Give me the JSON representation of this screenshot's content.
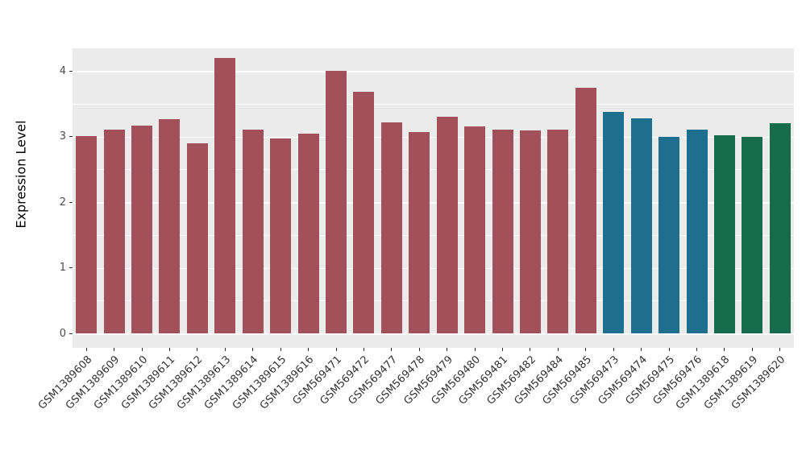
{
  "chart_data": {
    "type": "bar",
    "title": "",
    "xlabel": "",
    "ylabel": "Expression Level",
    "ylim": [
      0,
      4.34
    ],
    "yticks": [
      0,
      1,
      2,
      3,
      4
    ],
    "minor_ticks": [
      0.5,
      1.5,
      2.5,
      3.5
    ],
    "grid": true,
    "legend": "none",
    "panel_bg": "#EBEBEB",
    "grid_color": "#FFFFFF",
    "categories": [
      "GSM1389608",
      "GSM1389609",
      "GSM1389610",
      "GSM1389611",
      "GSM1389612",
      "GSM1389613",
      "GSM1389614",
      "GSM1389615",
      "GSM1389616",
      "GSM569471",
      "GSM569472",
      "GSM569477",
      "GSM569478",
      "GSM569479",
      "GSM569480",
      "GSM569481",
      "GSM569482",
      "GSM569484",
      "GSM569485",
      "GSM569473",
      "GSM569474",
      "GSM569475",
      "GSM569476",
      "GSM1389618",
      "GSM1389619",
      "GSM1389620"
    ],
    "values": [
      3.01,
      3.1,
      3.17,
      3.26,
      2.89,
      4.2,
      3.11,
      2.97,
      3.04,
      4.0,
      3.68,
      3.22,
      3.07,
      3.3,
      3.15,
      3.1,
      3.09,
      3.11,
      3.74,
      3.38,
      3.27,
      3.0,
      3.1,
      3.02,
      2.99,
      3.2
    ],
    "groups": [
      "A",
      "A",
      "A",
      "A",
      "A",
      "A",
      "A",
      "A",
      "A",
      "A",
      "A",
      "A",
      "A",
      "A",
      "A",
      "A",
      "A",
      "A",
      "A",
      "B",
      "B",
      "B",
      "B",
      "C",
      "C",
      "C"
    ],
    "palette": {
      "A": "#A2505A",
      "B": "#1E6F8E",
      "C": "#176B4D"
    }
  }
}
